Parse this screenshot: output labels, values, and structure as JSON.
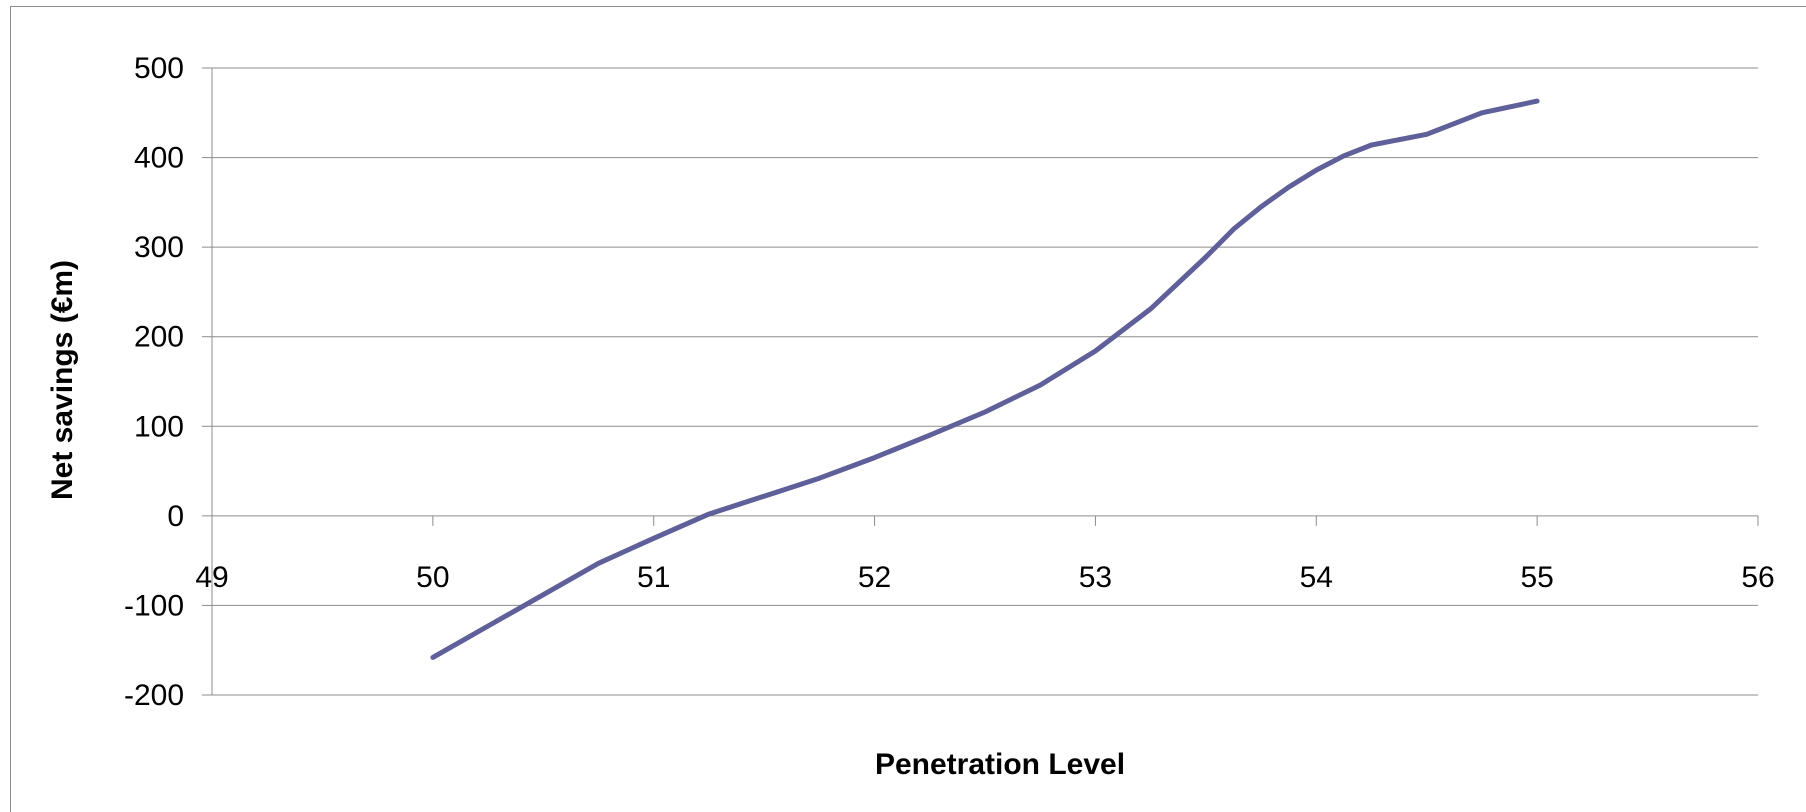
{
  "chart_data": {
    "type": "line",
    "xlabel": "Penetration Level",
    "ylabel": "Net savings (€m)",
    "xlim": [
      49,
      56
    ],
    "ylim": [
      -200,
      500
    ],
    "x_ticks": [
      49,
      50,
      51,
      52,
      53,
      54,
      55,
      56
    ],
    "y_ticks": [
      -200,
      -100,
      0,
      100,
      200,
      300,
      400,
      500
    ],
    "grid": "horizontal",
    "legend": "none",
    "series": [
      {
        "color": "#5f5f9a",
        "x": [
          50,
          50.25,
          50.5,
          50.75,
          51,
          51.25,
          51.5,
          51.75,
          52,
          52.25,
          52.5,
          52.75,
          53,
          53.25,
          53.5,
          53.625,
          53.75,
          53.875,
          54,
          54.125,
          54.25,
          54.5,
          54.75,
          55
        ],
        "y": [
          -158,
          -123,
          -88,
          -53,
          -25,
          2,
          22,
          42,
          65,
          90,
          116,
          146,
          184,
          231,
          289,
          320,
          345,
          367,
          386,
          402,
          414,
          426,
          450,
          463
        ]
      }
    ]
  }
}
